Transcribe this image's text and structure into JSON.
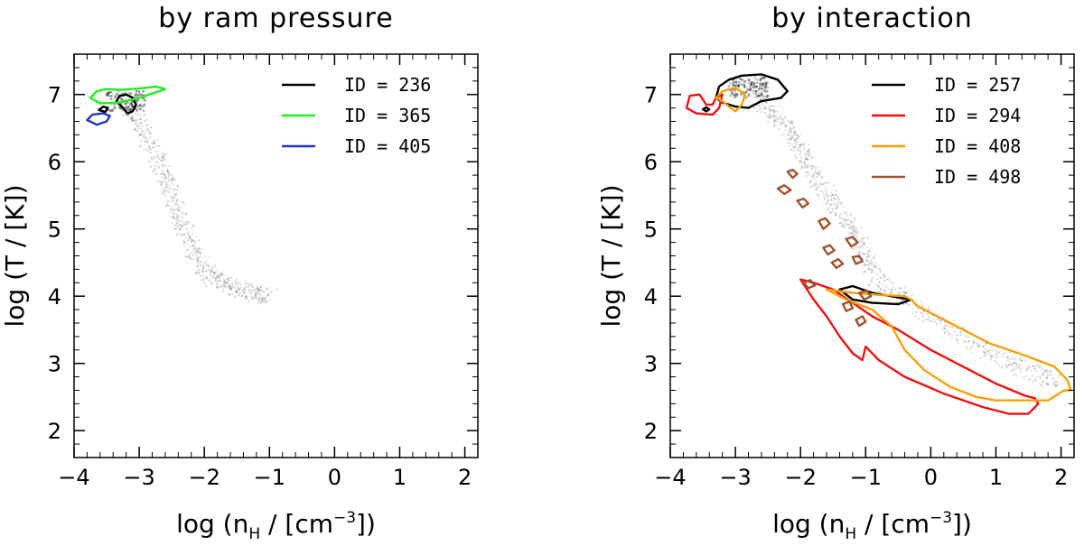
{
  "chart_data": [
    {
      "type": "contour",
      "title": "by ram pressure",
      "xlabel_main": "log (n",
      "xlabel_sub": "H",
      "xlabel_mid": " / [cm",
      "xlabel_sup": "−3",
      "xlabel_end": "])",
      "ylabel": "log (T / [K])",
      "xlim": [
        -4,
        2.2
      ],
      "ylim": [
        1.6,
        7.6
      ],
      "xticks": [
        {
          "v": -4,
          "label": "−4"
        },
        {
          "v": -3,
          "label": "−3"
        },
        {
          "v": -2,
          "label": "−2"
        },
        {
          "v": -1,
          "label": "−1"
        },
        {
          "v": 0,
          "label": "0"
        },
        {
          "v": 1,
          "label": "1"
        },
        {
          "v": 2,
          "label": "2"
        }
      ],
      "yticks": [
        {
          "v": 2,
          "label": "2"
        },
        {
          "v": 3,
          "label": "3"
        },
        {
          "v": 4,
          "label": "4"
        },
        {
          "v": 5,
          "label": "5"
        },
        {
          "v": 6,
          "label": "6"
        },
        {
          "v": 7,
          "label": "7"
        }
      ],
      "series": [
        {
          "name": "ID = 236",
          "color": "#000000",
          "contours": [
            [
              [
                -3.35,
                6.9
              ],
              [
                -3.3,
                6.98
              ],
              [
                -3.2,
                7.0
              ],
              [
                -3.1,
                6.95
              ],
              [
                -3.05,
                6.85
              ],
              [
                -3.1,
                6.75
              ],
              [
                -3.18,
                6.72
              ],
              [
                -3.25,
                6.8
              ],
              [
                -3.35,
                6.9
              ]
            ],
            [
              [
                -3.62,
                6.77
              ],
              [
                -3.55,
                6.82
              ],
              [
                -3.48,
                6.8
              ],
              [
                -3.52,
                6.74
              ],
              [
                -3.62,
                6.77
              ]
            ]
          ]
        },
        {
          "name": "ID = 365",
          "color": "#22ee22",
          "contours": [
            [
              [
                -3.75,
                6.95
              ],
              [
                -3.65,
                7.05
              ],
              [
                -3.5,
                7.08
              ],
              [
                -3.3,
                7.07
              ],
              [
                -3.1,
                7.08
              ],
              [
                -2.9,
                7.1
              ],
              [
                -2.75,
                7.12
              ],
              [
                -2.6,
                7.08
              ],
              [
                -2.75,
                7.03
              ],
              [
                -3.0,
                6.95
              ],
              [
                -3.3,
                6.88
              ],
              [
                -3.6,
                6.87
              ],
              [
                -3.75,
                6.95
              ]
            ]
          ]
        },
        {
          "name": "ID = 405",
          "color": "#2233cc",
          "contours": [
            [
              [
                -3.8,
                6.62
              ],
              [
                -3.72,
                6.7
              ],
              [
                -3.55,
                6.72
              ],
              [
                -3.45,
                6.68
              ],
              [
                -3.5,
                6.6
              ],
              [
                -3.65,
                6.55
              ],
              [
                -3.8,
                6.62
              ]
            ]
          ]
        }
      ],
      "density": {
        "points": [
          [
            -3.2,
            6.9
          ],
          [
            -3.0,
            6.6
          ],
          [
            -2.8,
            6.2
          ],
          [
            -2.6,
            5.8
          ],
          [
            -2.45,
            5.4
          ],
          [
            -2.3,
            5.0
          ],
          [
            -2.15,
            4.6
          ],
          [
            -1.9,
            4.3
          ],
          [
            -1.6,
            4.15
          ],
          [
            -1.3,
            4.05
          ],
          [
            -1.0,
            4.0
          ]
        ]
      }
    },
    {
      "type": "contour",
      "title": "by interaction",
      "xlabel_main": "log (n",
      "xlabel_sub": "H",
      "xlabel_mid": " / [cm",
      "xlabel_sup": "−3",
      "xlabel_end": "])",
      "ylabel": "log (T / [K])",
      "xlim": [
        -4,
        2.2
      ],
      "ylim": [
        1.6,
        7.6
      ],
      "xticks": [
        {
          "v": -4,
          "label": "−4"
        },
        {
          "v": -3,
          "label": "−3"
        },
        {
          "v": -2,
          "label": "−2"
        },
        {
          "v": -1,
          "label": "−1"
        },
        {
          "v": 0,
          "label": "0"
        },
        {
          "v": 1,
          "label": "1"
        },
        {
          "v": 2,
          "label": "2"
        }
      ],
      "yticks": [
        {
          "v": 2,
          "label": "2"
        },
        {
          "v": 3,
          "label": "3"
        },
        {
          "v": 4,
          "label": "4"
        },
        {
          "v": 5,
          "label": "5"
        },
        {
          "v": 6,
          "label": "6"
        },
        {
          "v": 7,
          "label": "7"
        }
      ],
      "series": [
        {
          "name": "ID = 257",
          "color": "#000000",
          "contours": [
            [
              [
                -3.3,
                6.95
              ],
              [
                -3.25,
                7.12
              ],
              [
                -3.1,
                7.22
              ],
              [
                -2.9,
                7.28
              ],
              [
                -2.6,
                7.3
              ],
              [
                -2.35,
                7.22
              ],
              [
                -2.2,
                7.05
              ],
              [
                -2.3,
                6.95
              ],
              [
                -2.6,
                6.9
              ],
              [
                -2.8,
                6.8
              ],
              [
                -3.0,
                6.82
              ],
              [
                -3.2,
                6.88
              ],
              [
                -3.3,
                6.95
              ]
            ],
            [
              [
                -1.4,
                4.1
              ],
              [
                -1.2,
                4.15
              ],
              [
                -0.9,
                4.05
              ],
              [
                -0.5,
                3.98
              ],
              [
                -0.3,
                3.95
              ],
              [
                -0.5,
                3.88
              ],
              [
                -0.9,
                3.9
              ],
              [
                -1.2,
                3.95
              ],
              [
                -1.4,
                4.1
              ]
            ],
            [
              [
                -3.5,
                6.78
              ],
              [
                -3.45,
                6.81
              ],
              [
                -3.4,
                6.78
              ],
              [
                -3.45,
                6.75
              ],
              [
                -3.5,
                6.78
              ]
            ]
          ]
        },
        {
          "name": "ID = 294",
          "color": "#ee1111",
          "contours": [
            [
              [
                -3.75,
                6.8
              ],
              [
                -3.7,
                6.98
              ],
              [
                -3.55,
                7.0
              ],
              [
                -3.45,
                6.85
              ],
              [
                -3.35,
                6.85
              ],
              [
                -3.3,
                6.95
              ],
              [
                -3.2,
                7.0
              ],
              [
                -3.25,
                6.8
              ],
              [
                -3.35,
                6.7
              ],
              [
                -3.6,
                6.72
              ],
              [
                -3.75,
                6.8
              ]
            ],
            [
              [
                -2.0,
                4.25
              ],
              [
                -1.8,
                4.2
              ],
              [
                -1.5,
                4.1
              ],
              [
                -1.2,
                3.9
              ],
              [
                -0.9,
                3.7
              ],
              [
                -0.5,
                3.5
              ],
              [
                0.0,
                3.2
              ],
              [
                0.5,
                2.95
              ],
              [
                1.0,
                2.7
              ],
              [
                1.45,
                2.52
              ],
              [
                1.6,
                2.48
              ],
              [
                1.65,
                2.4
              ],
              [
                1.5,
                2.25
              ],
              [
                1.2,
                2.25
              ],
              [
                0.8,
                2.35
              ],
              [
                0.2,
                2.55
              ],
              [
                -0.4,
                2.8
              ],
              [
                -0.8,
                3.05
              ],
              [
                -1.0,
                3.25
              ],
              [
                -1.05,
                3.05
              ],
              [
                -1.2,
                3.15
              ],
              [
                -1.4,
                3.4
              ],
              [
                -1.6,
                3.7
              ],
              [
                -1.8,
                3.95
              ],
              [
                -2.0,
                4.25
              ]
            ]
          ]
        },
        {
          "name": "ID = 408",
          "color": "#f5a00a",
          "contours": [
            [
              [
                -3.3,
                6.95
              ],
              [
                -3.2,
                7.05
              ],
              [
                -3.0,
                7.1
              ],
              [
                -2.85,
                7.0
              ],
              [
                -2.9,
                6.85
              ],
              [
                -3.0,
                6.75
              ],
              [
                -3.1,
                6.82
              ],
              [
                -3.2,
                6.9
              ],
              [
                -3.3,
                6.95
              ]
            ],
            [
              [
                -1.6,
                4.1
              ],
              [
                -1.2,
                4.05
              ],
              [
                -0.8,
                4.02
              ],
              [
                -0.4,
                4.0
              ],
              [
                -0.3,
                3.95
              ],
              [
                -0.2,
                3.85
              ],
              [
                0.3,
                3.6
              ],
              [
                0.9,
                3.3
              ],
              [
                1.5,
                3.1
              ],
              [
                1.9,
                2.95
              ],
              [
                2.1,
                2.75
              ],
              [
                2.15,
                2.6
              ],
              [
                2.05,
                2.6
              ],
              [
                1.8,
                2.45
              ],
              [
                1.4,
                2.45
              ],
              [
                1.0,
                2.45
              ],
              [
                0.7,
                2.5
              ],
              [
                0.3,
                2.65
              ],
              [
                -0.1,
                2.9
              ],
              [
                -0.4,
                3.2
              ],
              [
                -0.6,
                3.55
              ],
              [
                -0.9,
                3.8
              ],
              [
                -1.3,
                3.95
              ],
              [
                -1.6,
                4.1
              ]
            ]
          ]
        },
        {
          "name": "ID = 498",
          "color": "#a0522d",
          "contours": [
            [
              [
                -2.2,
                5.85
              ],
              [
                -2.12,
                5.88
              ],
              [
                -2.05,
                5.82
              ],
              [
                -2.12,
                5.76
              ],
              [
                -2.2,
                5.85
              ]
            ],
            [
              [
                -2.35,
                5.6
              ],
              [
                -2.25,
                5.65
              ],
              [
                -2.15,
                5.58
              ],
              [
                -2.25,
                5.52
              ],
              [
                -2.35,
                5.6
              ]
            ],
            [
              [
                -2.05,
                5.42
              ],
              [
                -1.95,
                5.45
              ],
              [
                -1.88,
                5.38
              ],
              [
                -1.97,
                5.32
              ],
              [
                -2.05,
                5.42
              ]
            ],
            [
              [
                -1.72,
                5.12
              ],
              [
                -1.62,
                5.16
              ],
              [
                -1.55,
                5.08
              ],
              [
                -1.65,
                5.0
              ],
              [
                -1.72,
                5.12
              ]
            ],
            [
              [
                -1.3,
                4.85
              ],
              [
                -1.2,
                4.88
              ],
              [
                -1.12,
                4.8
              ],
              [
                -1.22,
                4.74
              ],
              [
                -1.3,
                4.85
              ]
            ],
            [
              [
                -1.65,
                4.72
              ],
              [
                -1.55,
                4.76
              ],
              [
                -1.48,
                4.68
              ],
              [
                -1.58,
                4.62
              ],
              [
                -1.65,
                4.72
              ]
            ],
            [
              [
                -1.52,
                4.5
              ],
              [
                -1.42,
                4.55
              ],
              [
                -1.35,
                4.48
              ],
              [
                -1.45,
                4.42
              ],
              [
                -1.52,
                4.5
              ]
            ],
            [
              [
                -1.2,
                4.58
              ],
              [
                -1.1,
                4.6
              ],
              [
                -1.05,
                4.52
              ],
              [
                -1.15,
                4.48
              ],
              [
                -1.2,
                4.58
              ]
            ],
            [
              [
                -1.95,
                4.2
              ],
              [
                -1.85,
                4.24
              ],
              [
                -1.78,
                4.16
              ],
              [
                -1.88,
                4.12
              ],
              [
                -1.95,
                4.2
              ]
            ],
            [
              [
                -1.1,
                4.05
              ],
              [
                -0.98,
                4.08
              ],
              [
                -0.92,
                4.0
              ],
              [
                -1.02,
                3.95
              ],
              [
                -1.1,
                4.05
              ]
            ],
            [
              [
                -1.35,
                3.88
              ],
              [
                -1.25,
                3.92
              ],
              [
                -1.2,
                3.82
              ],
              [
                -1.3,
                3.78
              ],
              [
                -1.35,
                3.88
              ]
            ],
            [
              [
                -1.15,
                3.65
              ],
              [
                -1.05,
                3.7
              ],
              [
                -1.0,
                3.62
              ],
              [
                -1.1,
                3.56
              ],
              [
                -1.15,
                3.65
              ]
            ]
          ]
        }
      ],
      "density": {
        "points": [
          [
            -2.8,
            7.1
          ],
          [
            -2.5,
            6.8
          ],
          [
            -2.2,
            6.5
          ],
          [
            -2.0,
            6.2
          ],
          [
            -1.8,
            5.8
          ],
          [
            -1.5,
            5.4
          ],
          [
            -1.2,
            5.0
          ],
          [
            -1.0,
            4.6
          ],
          [
            -0.8,
            4.2
          ],
          [
            -0.3,
            3.9
          ],
          [
            0.3,
            3.5
          ],
          [
            0.9,
            3.15
          ],
          [
            1.5,
            2.9
          ],
          [
            2.0,
            2.7
          ]
        ]
      }
    }
  ]
}
